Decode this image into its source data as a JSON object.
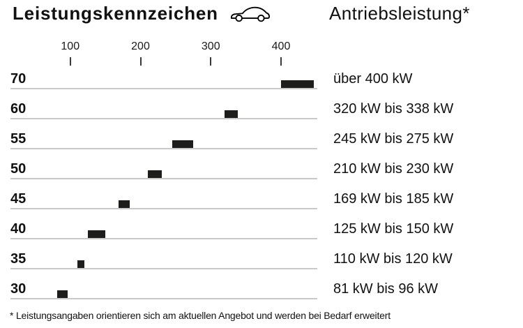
{
  "header": {
    "title": "Leistungskennzeichen",
    "right_title": "Antriebsleistung*"
  },
  "footnote": "* Leistungsangaben orientieren sich am aktuellen Angebot und werden bei Bedarf erweitert",
  "chart_data": {
    "type": "bar",
    "orientation": "horizontal",
    "title": "Leistungskennzeichen",
    "value_axis_title": "Antriebsleistung*",
    "axis_ticks": [
      100,
      200,
      300,
      400
    ],
    "axis_range_kw": [
      0,
      450
    ],
    "grid": "row-baselines",
    "legend": "none",
    "rows": [
      {
        "class": "70",
        "range_label": "über 400 kW",
        "kw_from": 400,
        "kw_to": 447,
        "open_ended": true
      },
      {
        "class": "60",
        "range_label": "320 kW bis 338 kW",
        "kw_from": 320,
        "kw_to": 338,
        "open_ended": false
      },
      {
        "class": "55",
        "range_label": "245 kW bis 275 kW",
        "kw_from": 245,
        "kw_to": 275,
        "open_ended": false
      },
      {
        "class": "50",
        "range_label": "210 kW bis 230 kW",
        "kw_from": 210,
        "kw_to": 230,
        "open_ended": false
      },
      {
        "class": "45",
        "range_label": "169 kW bis 185 kW",
        "kw_from": 169,
        "kw_to": 185,
        "open_ended": false
      },
      {
        "class": "40",
        "range_label": "125 kW bis 150 kW",
        "kw_from": 125,
        "kw_to": 150,
        "open_ended": false
      },
      {
        "class": "35",
        "range_label": "110 kW bis 120 kW",
        "kw_from": 110,
        "kw_to": 120,
        "open_ended": false
      },
      {
        "class": "30",
        "range_label": "81 kW bis 96 kW",
        "kw_from": 81,
        "kw_to": 96,
        "open_ended": false
      }
    ],
    "colors": {
      "bar": "#1d1d1b",
      "row_line": "#c9c9c9",
      "text": "#111111",
      "background": "#ffffff"
    }
  }
}
